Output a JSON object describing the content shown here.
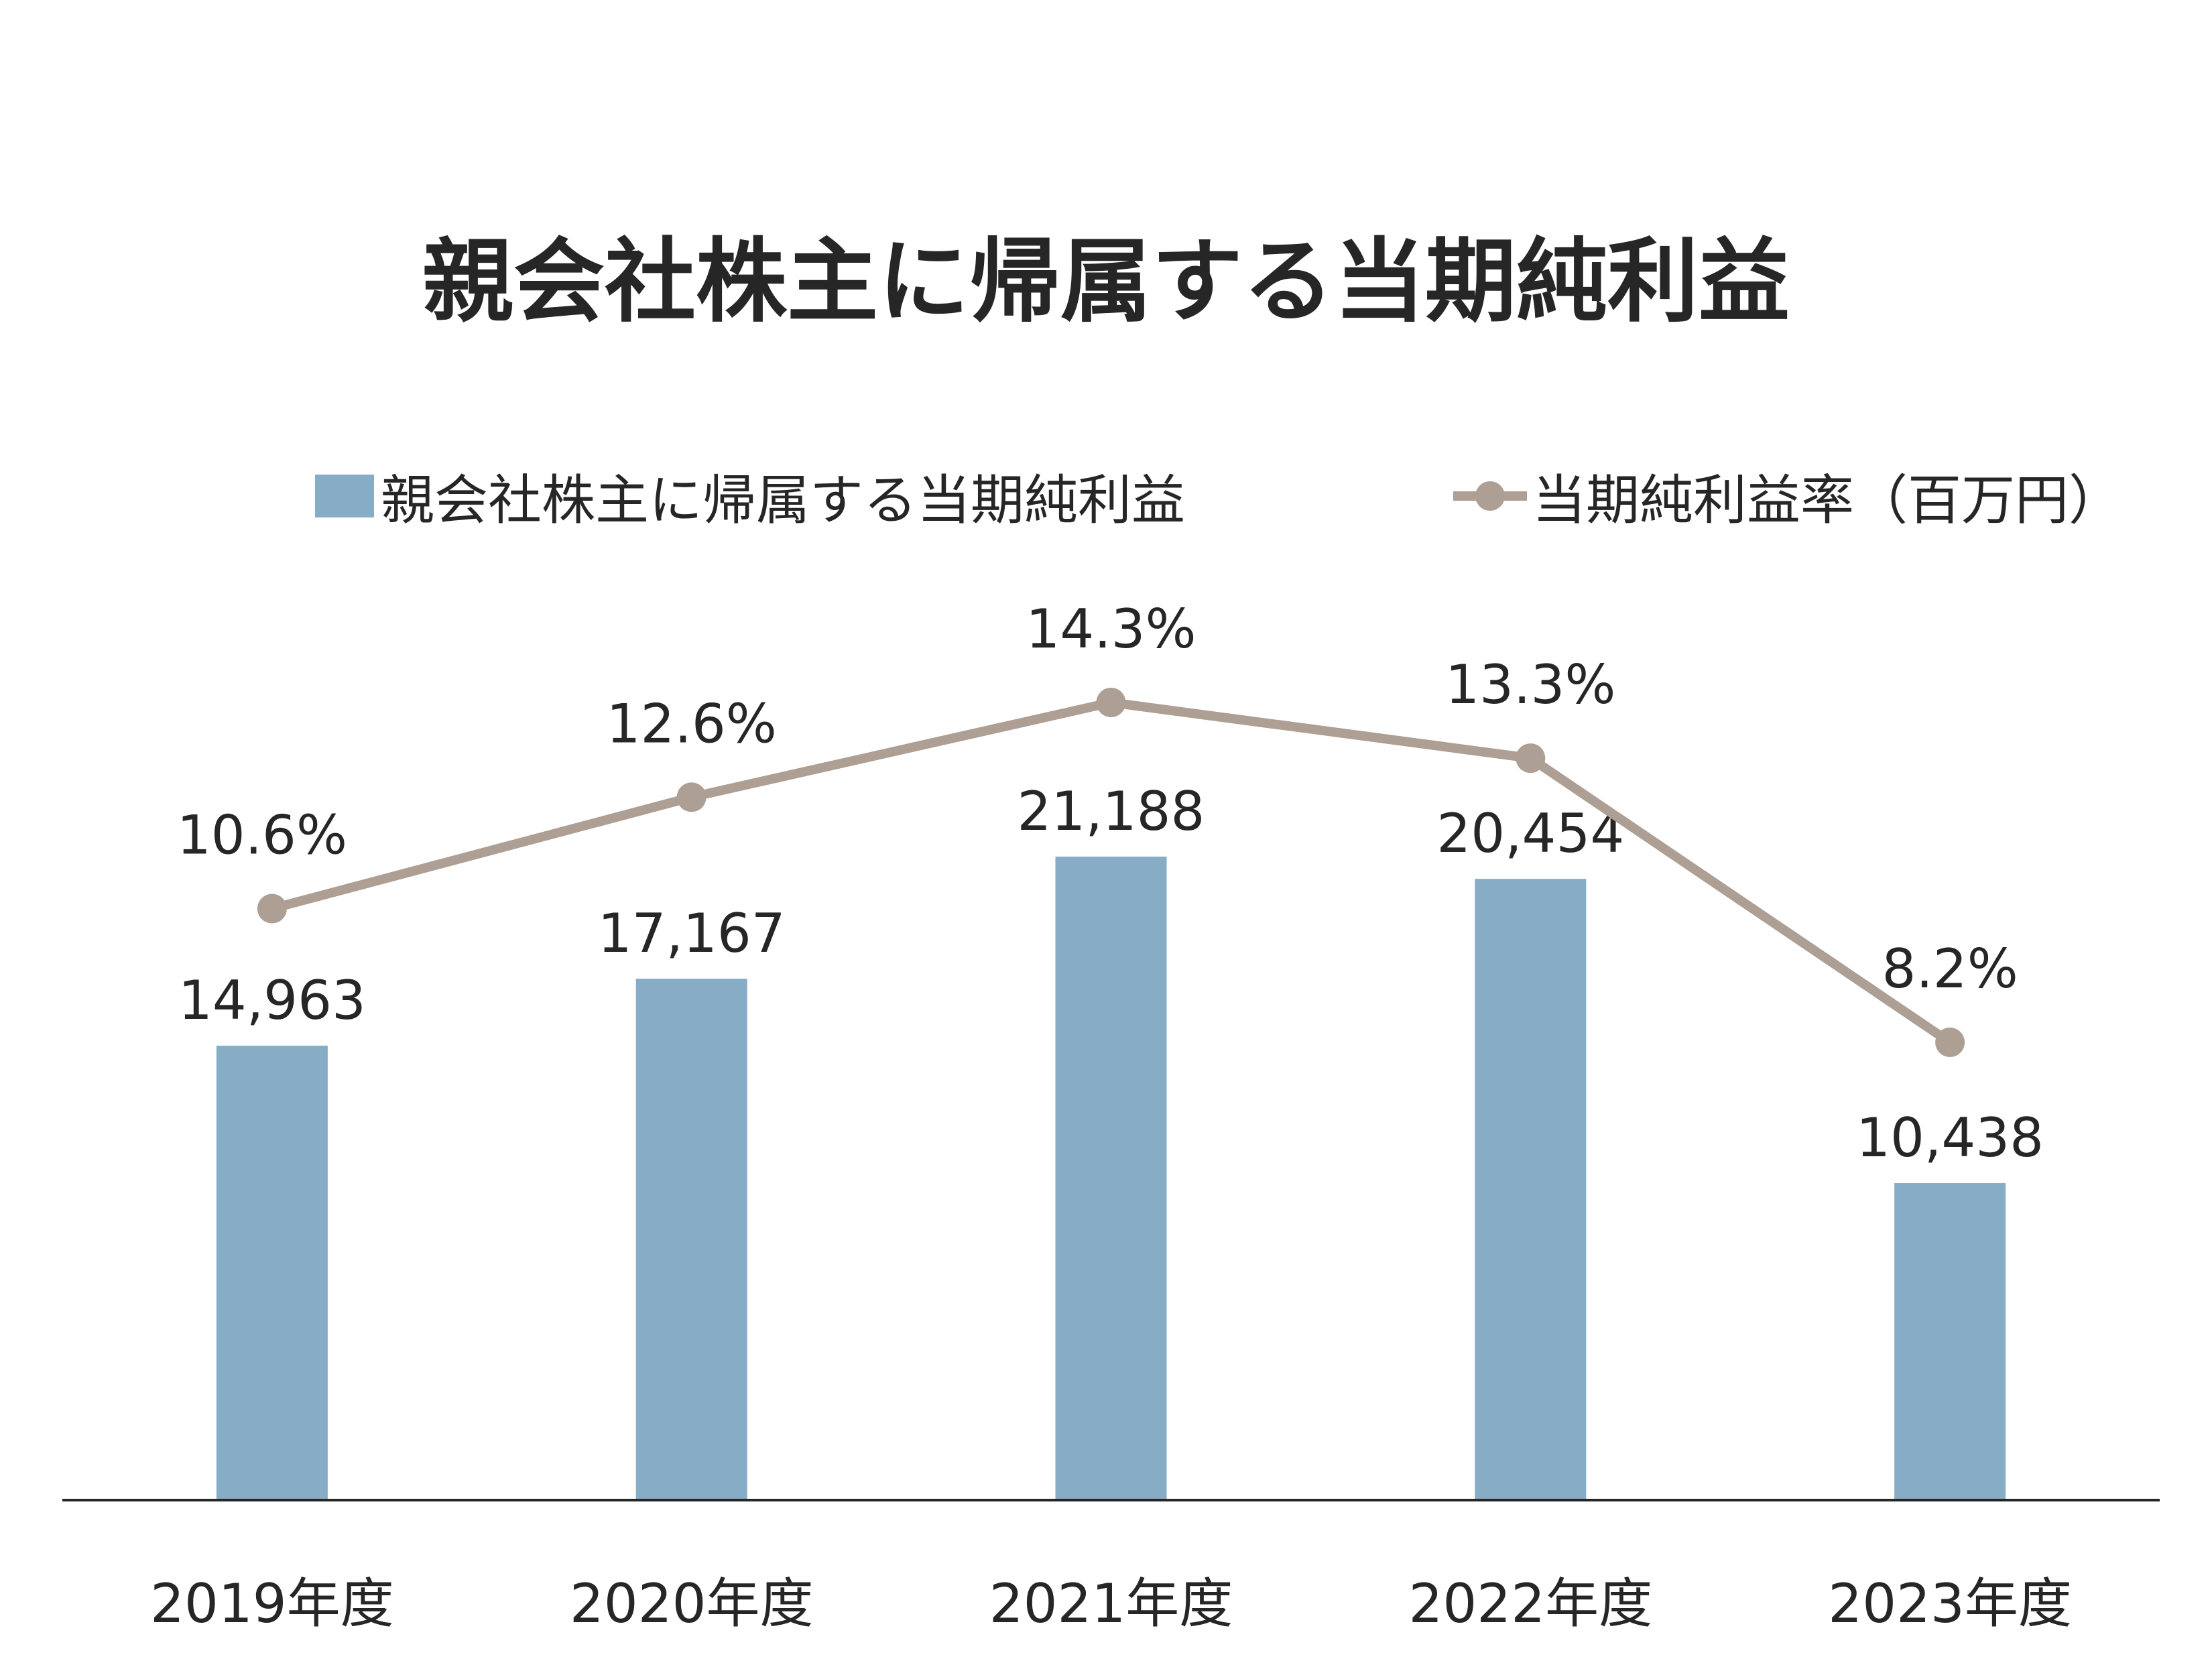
{
  "chart_data": {
    "type": "bar",
    "title": "親会社株主に帰属する当期純利益",
    "categories": [
      "2019年度",
      "2020年度",
      "2021年度",
      "2022年度",
      "2023年度"
    ],
    "series": [
      {
        "name": "親会社株主に帰属する当期純利益",
        "type": "bar",
        "values": [
          14963,
          17167,
          21188,
          20454,
          10438
        ],
        "labels": [
          "14,963",
          "17,167",
          "21,188",
          "20,454",
          "10,438"
        ],
        "color": "#86acc6"
      },
      {
        "name": "当期純利益率（百万円）",
        "type": "line",
        "values": [
          10.6,
          12.6,
          14.3,
          13.3,
          8.2
        ],
        "labels": [
          "10.6%",
          "12.6%",
          "14.3%",
          "13.3%",
          "8.2%"
        ],
        "color": "#ad9f93"
      }
    ],
    "ylim": [
      0,
      22000
    ],
    "y2lim": [
      0,
      16
    ],
    "grid": false,
    "legend_position": "top"
  }
}
